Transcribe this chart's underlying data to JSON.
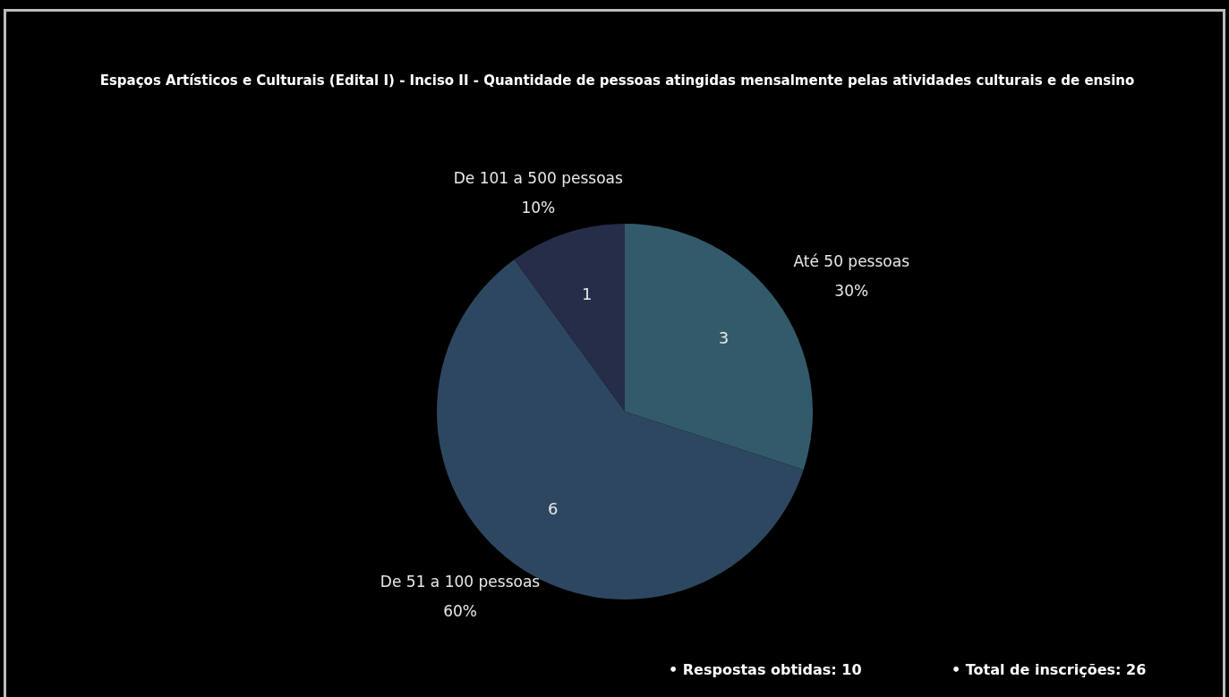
{
  "chart_data": {
    "type": "pie",
    "title": "Espaços Artísticos e Culturais (Edital I) - Inciso II - Quantidade de pessoas atingidas mensalmente pelas atividades culturais e de ensino",
    "categories": [
      "Até 50 pessoas",
      "De 51 a 100 pessoas",
      "De 101 a 500 pessoas"
    ],
    "values": [
      3,
      6,
      1
    ],
    "data_labels": true,
    "colors": [
      "#335a6a",
      "#2e4760",
      "#262d48"
    ],
    "annotations": [
      {
        "text": "30%",
        "x": "Até 50 pessoas"
      },
      {
        "text": "60%",
        "x": "De 51 a 100 pessoas"
      },
      {
        "text": "10%",
        "x": "De 101 a 500 pessoas"
      },
      "• Respostas obtidas: 10",
      "• Total de inscrições: 26"
    ]
  }
}
